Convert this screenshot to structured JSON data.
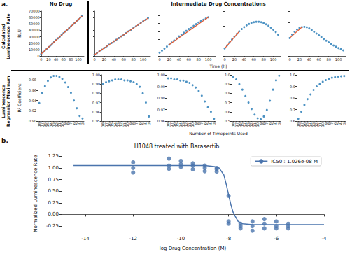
{
  "figure": {
    "panel_a_label": "a.",
    "panel_b_label": "b.",
    "header_left": "No Drug",
    "header_right": "Intermediate Drug Concentrations",
    "row_top_label": "Calculated Luminescence Rate",
    "row_bottom_label": "Luminescence Regression Maximum",
    "row_top_x_label": "Time (h)",
    "row_bottom_x_label": "Number of Timepoints Used"
  },
  "chart_data": [
    {
      "type": "scatter",
      "y_label": "RLU",
      "xlim": [
        0,
        115
      ],
      "xticks": [
        0,
        20,
        40,
        60,
        80,
        100
      ],
      "ylim": [
        0,
        70000
      ],
      "yticks": [
        0,
        10000,
        20000,
        30000,
        40000,
        50000,
        60000,
        70000
      ],
      "grid": false,
      "series": [
        {
          "type": "scatter",
          "marker": "circle",
          "color": "#1f77b4",
          "x": [
            0,
            5,
            10,
            15,
            20,
            25,
            30,
            35,
            40,
            45,
            50,
            55,
            60,
            65,
            70,
            75,
            80,
            85,
            90,
            95,
            100,
            105,
            110
          ],
          "values": [
            3000,
            5800,
            8500,
            11200,
            14000,
            16500,
            19500,
            22000,
            24800,
            27500,
            30200,
            33000,
            35500,
            38200,
            41000,
            43500,
            46200,
            49000,
            51800,
            54300,
            57000,
            59800,
            62500
          ]
        },
        {
          "type": "line",
          "line_style": "solid",
          "color": "#e4572e",
          "x": [
            0,
            110
          ],
          "values": [
            3000,
            62400
          ]
        }
      ]
    },
    {
      "type": "scatter",
      "xlim": [
        0,
        115
      ],
      "xticks": [
        0,
        20,
        40,
        60,
        80,
        100
      ],
      "ylim": [
        0,
        70000
      ],
      "yticks": [
        0,
        10000,
        20000,
        30000,
        40000,
        50000,
        60000,
        70000
      ],
      "tick_labels": "x",
      "grid": false,
      "series": [
        {
          "type": "scatter",
          "marker": "circle",
          "color": "#1f77b4",
          "x": [
            0,
            5,
            10,
            15,
            20,
            25,
            30,
            35,
            40,
            45,
            50,
            55,
            60,
            65,
            70,
            75,
            80,
            85,
            90,
            95,
            100,
            105,
            110
          ],
          "values": [
            2000,
            4500,
            7300,
            9800,
            12500,
            15000,
            17800,
            20300,
            23000,
            25500,
            28000,
            30700,
            33200,
            35800,
            38500,
            41000,
            43600,
            46200,
            48800,
            51300,
            54000,
            56500,
            59200
          ]
        },
        {
          "type": "line",
          "line_style": "solid",
          "color": "#e4572e",
          "x": [
            0,
            110
          ],
          "values": [
            2000,
            59200
          ]
        }
      ]
    },
    {
      "type": "scatter",
      "xlim": [
        0,
        115
      ],
      "xticks": [
        0,
        20,
        40,
        60,
        80,
        100
      ],
      "ylim": [
        0,
        55000
      ],
      "yticks": [
        0,
        10000,
        20000,
        30000,
        40000,
        50000
      ],
      "tick_labels": "x",
      "grid": false,
      "series": [
        {
          "type": "scatter",
          "marker": "circle",
          "color": "#1f77b4",
          "x": [
            0,
            5,
            10,
            15,
            20,
            25,
            30,
            35,
            40,
            45,
            50,
            55,
            60,
            65,
            70,
            75,
            80,
            85,
            90,
            95,
            100
          ],
          "values": [
            4000,
            6500,
            9000,
            11500,
            14000,
            16500,
            19000,
            21500,
            24000,
            26300,
            28600,
            30800,
            33000,
            35000,
            37000,
            39000,
            41000,
            42800,
            44500,
            46000,
            47500
          ]
        },
        {
          "type": "line",
          "line_style": "solid",
          "color": "#e4572e",
          "x": [
            20,
            100
          ],
          "values": [
            14000,
            47500
          ]
        }
      ]
    },
    {
      "type": "scatter",
      "xlim": [
        0,
        115
      ],
      "xticks": [
        0,
        20,
        40,
        60,
        80,
        100
      ],
      "ylim": [
        0,
        30000
      ],
      "yticks": [
        0,
        10000,
        20000,
        30000
      ],
      "tick_labels": "x",
      "grid": false,
      "series": [
        {
          "type": "scatter",
          "marker": "circle",
          "color": "#1f77b4",
          "x": [
            0,
            5,
            10,
            15,
            20,
            25,
            30,
            35,
            40,
            45,
            50,
            55,
            60,
            65,
            70,
            75,
            80,
            85,
            90,
            95,
            100,
            105,
            110
          ],
          "values": [
            5000,
            7000,
            9000,
            11000,
            13000,
            14800,
            16500,
            18000,
            19300,
            20500,
            21400,
            22100,
            22600,
            22900,
            22900,
            22600,
            22000,
            21200,
            20200,
            19000,
            17600,
            16000,
            14200
          ]
        },
        {
          "type": "line",
          "line_style": "solid",
          "color": "#e4572e",
          "x": [
            0,
            30
          ],
          "values": [
            5000,
            16500
          ]
        }
      ]
    },
    {
      "type": "scatter",
      "xlim": [
        0,
        115
      ],
      "xticks": [
        0,
        20,
        40,
        60,
        80,
        100
      ],
      "ylim": [
        0,
        20000
      ],
      "yticks": [
        0,
        5000,
        10000,
        15000,
        20000
      ],
      "tick_labels": "x",
      "grid": false,
      "series": [
        {
          "type": "scatter",
          "marker": "circle",
          "color": "#1f77b4",
          "x": [
            0,
            5,
            10,
            15,
            20,
            25,
            30,
            35,
            40,
            45,
            50,
            55,
            60,
            65,
            70,
            75,
            80,
            85,
            90,
            95,
            100,
            105,
            110
          ],
          "values": [
            8000,
            9500,
            10800,
            11800,
            12500,
            12900,
            13000,
            12800,
            12300,
            11600,
            10800,
            10000,
            9200,
            8400,
            7600,
            6800,
            6100,
            5400,
            4700,
            4100,
            3500,
            3000,
            2500
          ]
        },
        {
          "type": "line",
          "line_style": "solid",
          "color": "#e4572e",
          "x": [
            0,
            25
          ],
          "values": [
            8000,
            12900
          ]
        }
      ]
    },
    {
      "type": "scatter",
      "y_label": "R² Coefficient",
      "categories": [
        18,
        17,
        16,
        15,
        14,
        13,
        12,
        11,
        10,
        9,
        8,
        7,
        6,
        5,
        4,
        3
      ],
      "ylim": [
        0.9,
        0.99
      ],
      "yticks": [
        {
          "value": 0.9,
          "label": "0.90"
        },
        0.92,
        0.94,
        0.96,
        0.98
      ],
      "grid": false,
      "series": [
        {
          "type": "scatter",
          "marker": "circle",
          "color": "#1f77b4",
          "values": [
            0.935,
            0.955,
            0.968,
            0.978,
            0.985,
            0.988,
            0.988,
            0.986,
            0.982,
            0.975,
            0.966,
            0.955,
            0.94,
            0.925,
            0.91,
            0.905
          ]
        }
      ]
    },
    {
      "type": "scatter",
      "categories": [
        18,
        17,
        16,
        15,
        14,
        13,
        12,
        11,
        10,
        9,
        8,
        7,
        6,
        5,
        4,
        3
      ],
      "ylim": [
        0.95,
        1.0
      ],
      "yticks": [
        0.95,
        0.96,
        0.97,
        0.98,
        0.99,
        {
          "value": 1.0,
          "label": "1.00"
        }
      ],
      "grid": false,
      "series": [
        {
          "type": "scatter",
          "marker": "circle",
          "color": "#1f77b4",
          "values": [
            0.99,
            0.992,
            0.993,
            0.994,
            0.995,
            0.995,
            0.995,
            0.994,
            0.994,
            0.993,
            0.992,
            0.99,
            0.987,
            0.98,
            0.97,
            0.955
          ]
        }
      ]
    },
    {
      "type": "scatter",
      "categories": [
        18,
        17,
        16,
        15,
        14,
        13,
        12,
        11,
        10,
        9,
        8,
        7,
        6,
        5,
        4,
        3
      ],
      "ylim": [
        0.96,
        1.0
      ],
      "yticks": [
        0.96,
        0.97,
        0.98,
        0.99,
        {
          "value": 1.0,
          "label": "1.00"
        }
      ],
      "grid": false,
      "series": [
        {
          "type": "scatter",
          "marker": "circle",
          "color": "#1f77b4",
          "values": [
            0.997,
            0.997,
            0.996,
            0.996,
            0.995,
            0.995,
            0.994,
            0.993,
            0.991,
            0.989,
            0.986,
            0.982,
            0.977,
            0.972,
            0.968,
            0.962
          ]
        }
      ]
    },
    {
      "type": "scatter",
      "categories": [
        18,
        17,
        16,
        15,
        14,
        13,
        12,
        11,
        10,
        9,
        8,
        7,
        6,
        5,
        4,
        3
      ],
      "ylim": [
        0.5,
        1.0
      ],
      "yticks": [
        0.5,
        0.6,
        0.7,
        0.8,
        0.9,
        {
          "value": 1.0,
          "label": "1.0"
        }
      ],
      "grid": false,
      "series": [
        {
          "type": "scatter",
          "marker": "circle",
          "color": "#1f77b4",
          "values": [
            0.98,
            0.95,
            0.9,
            0.84,
            0.77,
            0.7,
            0.63,
            0.57,
            0.53,
            0.52,
            0.55,
            0.62,
            0.72,
            0.84,
            0.94,
            0.99
          ]
        }
      ]
    },
    {
      "type": "scatter",
      "categories": [
        18,
        17,
        16,
        15,
        14,
        13,
        12,
        11,
        10,
        9,
        8,
        7,
        6,
        5,
        4,
        3
      ],
      "ylim": [
        0.6,
        1.0
      ],
      "yticks": [
        0.6,
        0.7,
        0.8,
        0.9,
        {
          "value": 1.0,
          "label": "1.0"
        }
      ],
      "grid": false,
      "series": [
        {
          "type": "scatter",
          "marker": "circle",
          "color": "#1f77b4",
          "values": [
            0.62,
            0.68,
            0.74,
            0.79,
            0.83,
            0.87,
            0.9,
            0.92,
            0.94,
            0.955,
            0.965,
            0.975,
            0.98,
            0.985,
            0.988,
            0.99
          ]
        }
      ]
    },
    {
      "type": "scatter",
      "title": "H1048 treated with Barasertib",
      "x_label": "log Drug Concentration (M)",
      "y_label": "Normalized Luminescence Rate",
      "xlim": [
        -15,
        -4
      ],
      "xticks": [
        -14,
        -12,
        -10,
        -8,
        -6,
        -4
      ],
      "ylim": [
        -0.4,
        1.3
      ],
      "yticks": [
        -0.25,
        {
          "value": 0,
          "label": "0.00"
        },
        0.25,
        {
          "value": 0.5,
          "label": "0.50"
        },
        0.75,
        {
          "value": 1.0,
          "label": "1.00"
        },
        1.25
      ],
      "grid": false,
      "legend": "upper right",
      "series": [
        {
          "type": "scatter",
          "marker": "circle",
          "color": "#4a74ad",
          "x": [
            -12,
            -12,
            -12,
            -10.5,
            -10.5,
            -10.5,
            -10,
            -10,
            -10,
            -9.5,
            -9.5,
            -9.5,
            -9,
            -9,
            -9,
            -8.5,
            -8.5,
            -8.5,
            -8,
            -8,
            -8,
            -7.5,
            -7.5,
            -7.5,
            -7,
            -7,
            -7,
            -6.5,
            -6.5,
            -6.5,
            -6,
            -6,
            -6,
            -5.5,
            -5.5,
            -5.5
          ],
          "values": [
            1.12,
            0.9,
            1.0,
            1.2,
            1.05,
            0.98,
            1.15,
            1.02,
            1.08,
            1.05,
            0.97,
            1.1,
            1.0,
            0.93,
            1.05,
            1.0,
            0.92,
            0.97,
            0.4,
            -0.15,
            -0.2,
            -0.3,
            -0.2,
            -0.25,
            -0.35,
            -0.25,
            -0.15,
            -0.2,
            -0.3,
            -0.1,
            -0.25,
            -0.15,
            -0.3,
            -0.2,
            -0.3,
            -0.25
          ]
        },
        {
          "type": "line",
          "name": "IC50 : 1.026e-08 M",
          "line_style": "solid",
          "color": "#4a74ad",
          "x": [
            -14.5,
            -9,
            -8.6,
            -8.4,
            -8.2,
            -8.1,
            -8.0,
            -7.9,
            -7.8,
            -7.6,
            -7.4,
            -7,
            -4
          ],
          "values": [
            1.05,
            1.05,
            1.03,
            1.0,
            0.85,
            0.65,
            0.42,
            0.2,
            0.03,
            -0.15,
            -0.2,
            -0.22,
            -0.22
          ]
        }
      ]
    }
  ]
}
